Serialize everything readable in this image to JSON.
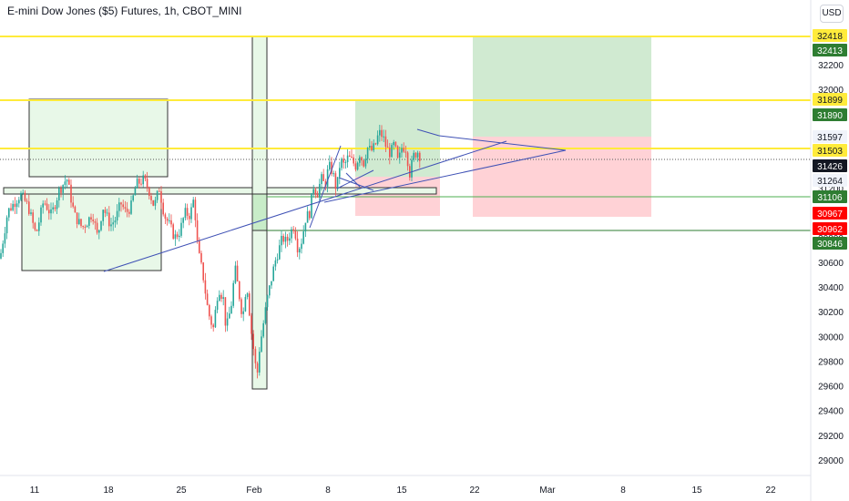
{
  "header": {
    "title": "E-mini Dow Jones ($5) Futures, 1h, CBOT_MINI",
    "currency_button": "USD"
  },
  "colors": {
    "up": "#26a69a",
    "down": "#ef5350",
    "level_line": "#ffeb3b",
    "trend_line": "#3f51b5",
    "green_zone": "#c8e6c9",
    "red_zone": "#ffcdd2",
    "current_price_label": "#131722",
    "stop_label": "#ff0000",
    "target_label": "#2e7d32"
  },
  "chart_data": {
    "type": "candlestick",
    "y_axis": {
      "ticks": [
        29000,
        29200,
        29400,
        29600,
        29800,
        30000,
        30200,
        30400,
        30600,
        30800,
        31000,
        31200,
        31400,
        31600,
        32000,
        32200
      ],
      "ylim": [
        28850,
        32450
      ]
    },
    "x_axis": {
      "ticks": [
        "11",
        "18",
        "25",
        "Feb",
        "8",
        "15",
        "22",
        "Mar",
        "8",
        "15",
        "22"
      ]
    },
    "price_labels": [
      {
        "value": "32418",
        "style": "yellow"
      },
      {
        "value": "32413",
        "style": "green"
      },
      {
        "value": "31899",
        "style": "yellow"
      },
      {
        "value": "31890",
        "style": "green"
      },
      {
        "value": "31597",
        "style": "gray"
      },
      {
        "value": "31503",
        "style": "yellow"
      },
      {
        "value": "31426",
        "style": "dark"
      },
      {
        "value": "31264",
        "style": "gray"
      },
      {
        "value": "31106",
        "style": "green"
      },
      {
        "value": "30967",
        "style": "red"
      },
      {
        "value": "30962",
        "style": "red"
      },
      {
        "value": "30846",
        "style": "green"
      }
    ],
    "horizontal_levels": [
      32418,
      31899,
      31503
    ],
    "price_path": [
      [
        0,
        30630
      ],
      [
        0.03,
        31010
      ],
      [
        0.08,
        31150
      ],
      [
        0.11,
        31050
      ],
      [
        0.14,
        30820
      ],
      [
        0.17,
        31100
      ],
      [
        0.2,
        30980
      ],
      [
        0.23,
        31180
      ],
      [
        0.26,
        31280
      ],
      [
        0.29,
        30980
      ],
      [
        0.32,
        30880
      ],
      [
        0.34,
        30930
      ],
      [
        0.36,
        31000
      ],
      [
        0.38,
        30800
      ],
      [
        0.4,
        31050
      ],
      [
        0.43,
        30900
      ],
      [
        0.45,
        30950
      ],
      [
        0.47,
        31080
      ],
      [
        0.49,
        31000
      ],
      [
        0.51,
        31050
      ],
      [
        0.53,
        31230
      ],
      [
        0.56,
        31270
      ],
      [
        0.58,
        31180
      ],
      [
        0.6,
        31050
      ],
      [
        0.62,
        31200
      ],
      [
        0.64,
        30980
      ],
      [
        0.66,
        30900
      ],
      [
        0.68,
        30800
      ],
      [
        0.7,
        30850
      ],
      [
        0.72,
        31000
      ],
      [
        0.74,
        30980
      ],
      [
        0.755,
        31120
      ],
      [
        0.77,
        30700
      ],
      [
        0.79,
        30500
      ],
      [
        0.81,
        30200
      ],
      [
        0.83,
        30060
      ],
      [
        0.85,
        30400
      ],
      [
        0.87,
        30300
      ],
      [
        0.88,
        30050
      ],
      [
        0.9,
        30250
      ],
      [
        0.915,
        30550
      ],
      [
        0.93,
        30350
      ],
      [
        0.945,
        30150
      ],
      [
        0.96,
        30450
      ],
      [
        0.98,
        30000
      ],
      [
        0.99,
        29850
      ],
      [
        1.0,
        29660
      ],
      [
        1.01,
        29900
      ],
      [
        1.025,
        30100
      ],
      [
        1.04,
        30300
      ],
      [
        1.055,
        30450
      ],
      [
        1.07,
        30600
      ],
      [
        1.085,
        30700
      ],
      [
        1.1,
        30800
      ],
      [
        1.115,
        30760
      ],
      [
        1.13,
        30840
      ],
      [
        1.145,
        30900
      ],
      [
        1.16,
        30700
      ],
      [
        1.175,
        30780
      ],
      [
        1.19,
        30960
      ],
      [
        1.205,
        31000
      ],
      [
        1.22,
        31220
      ],
      [
        1.235,
        31150
      ],
      [
        1.25,
        31280
      ],
      [
        1.265,
        31220
      ],
      [
        1.28,
        31380
      ],
      [
        1.295,
        31330
      ],
      [
        1.31,
        31180
      ],
      [
        1.325,
        31430
      ],
      [
        1.34,
        31380
      ],
      [
        1.355,
        31450
      ],
      [
        1.37,
        31420
      ],
      [
        1.385,
        31380
      ],
      [
        1.4,
        31480
      ],
      [
        1.415,
        31400
      ],
      [
        1.43,
        31530
      ],
      [
        1.445,
        31500
      ],
      [
        1.46,
        31540
      ],
      [
        1.475,
        31650
      ],
      [
        1.49,
        31620
      ],
      [
        1.505,
        31520
      ],
      [
        1.52,
        31480
      ],
      [
        1.535,
        31560
      ],
      [
        1.55,
        31400
      ],
      [
        1.565,
        31540
      ],
      [
        1.58,
        31520
      ],
      [
        1.595,
        31320
      ],
      [
        1.61,
        31460
      ],
      [
        1.625,
        31500
      ],
      [
        1.64,
        31440
      ]
    ]
  }
}
